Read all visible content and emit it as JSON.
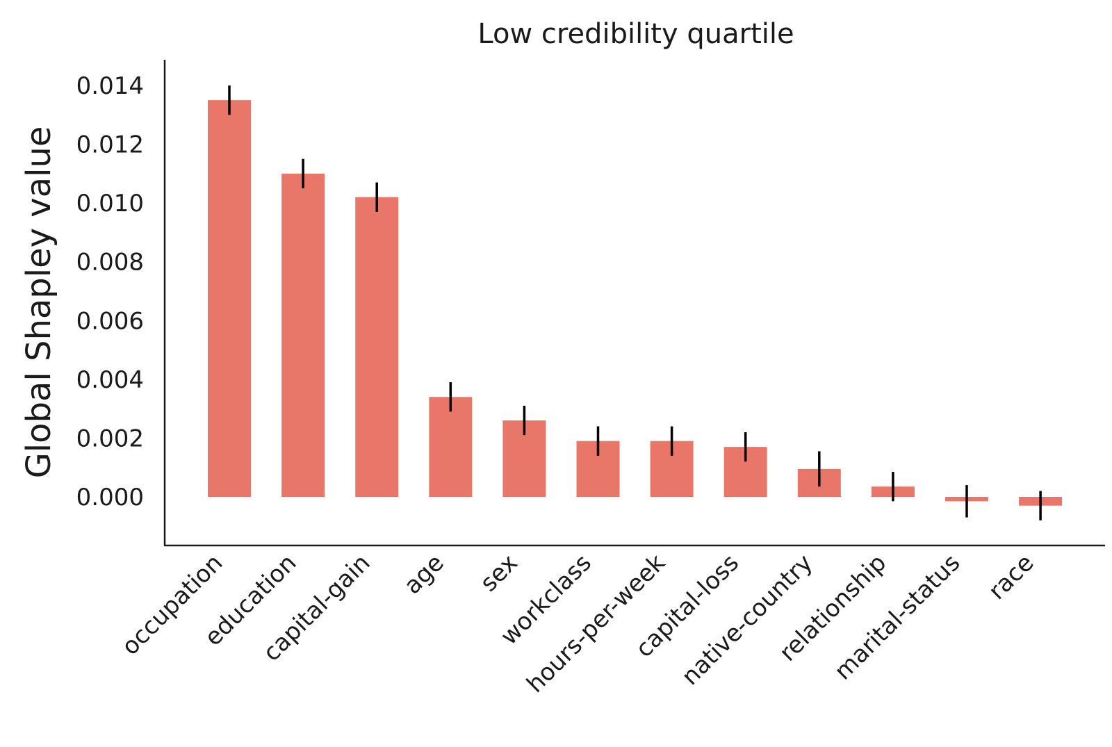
{
  "chart_data": {
    "type": "bar",
    "title": "Low credibility quartile",
    "xlabel": "",
    "ylabel": "Global Shapley value",
    "categories": [
      "occupation",
      "education",
      "capital-gain",
      "age",
      "sex",
      "workclass",
      "hours-per-week",
      "capital-loss",
      "native-country",
      "relationship",
      "marital-status",
      "race"
    ],
    "values": [
      0.0135,
      0.011,
      0.0102,
      0.0034,
      0.0026,
      0.0019,
      0.0019,
      0.0017,
      0.00095,
      0.00035,
      -0.00015,
      -0.0003
    ],
    "errors": [
      0.0005,
      0.0005,
      0.0005,
      0.0005,
      0.0005,
      0.0005,
      0.0005,
      0.0005,
      0.0006,
      0.0005,
      0.00055,
      0.0005
    ],
    "yticks": [
      "0.000",
      "0.002",
      "0.004",
      "0.006",
      "0.008",
      "0.010",
      "0.012",
      "0.014"
    ],
    "ylim": [
      -0.0016,
      0.0148
    ],
    "grid": false,
    "bar_color": "#e8776a",
    "error_color": "#000000"
  }
}
